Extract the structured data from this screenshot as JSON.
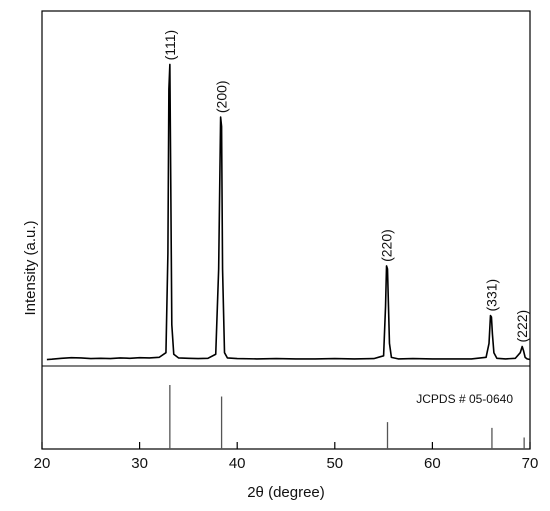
{
  "chart_data": {
    "type": "line",
    "xlabel": "2θ (degree)",
    "ylabel": "Intensity (a.u.)",
    "xlim": [
      20,
      70
    ],
    "x_ticks": [
      20,
      30,
      40,
      50,
      60,
      70
    ],
    "ylim": [
      0,
      100
    ],
    "grid": false,
    "series": [
      {
        "x": [
          20.5,
          21,
          22,
          23,
          24,
          25,
          26,
          27,
          28,
          29,
          30,
          31,
          32,
          32.7,
          32.9,
          33.0,
          33.1,
          33.2,
          33.3,
          33.5,
          34,
          35,
          36,
          37,
          37.8,
          38.1,
          38.3,
          38.4,
          38.5,
          38.7,
          39,
          40,
          42,
          44,
          46,
          48,
          50,
          52,
          54,
          55.0,
          55.2,
          55.3,
          55.4,
          55.5,
          55.6,
          55.8,
          56.5,
          58,
          60,
          62,
          64,
          65.5,
          65.8,
          65.95,
          66.05,
          66.15,
          66.3,
          66.6,
          67.5,
          68.5,
          69.0,
          69.2,
          69.35,
          69.5,
          69.7,
          70
        ],
        "values": [
          0.8,
          0.9,
          1.2,
          1.4,
          1.3,
          1.1,
          1.2,
          1.1,
          1.3,
          1.2,
          1.4,
          1.3,
          1.5,
          3,
          35,
          88,
          96,
          55,
          12,
          2.5,
          1.3,
          1.2,
          1.1,
          1.2,
          2.5,
          30,
          79,
          76,
          30,
          3,
          1.3,
          1.1,
          1.0,
          1.1,
          1.0,
          1.0,
          1.1,
          1.0,
          1.1,
          2,
          18,
          31,
          30,
          18,
          6,
          1.5,
          1.0,
          1.1,
          1.0,
          1.0,
          1.0,
          1.5,
          6,
          15,
          14.5,
          9,
          3,
          1.2,
          1.0,
          1.2,
          3,
          5,
          3.5,
          1.5,
          1.0,
          0.8
        ]
      }
    ],
    "peak_labels": [
      {
        "text": "(111)",
        "x": 33.1,
        "y": 96
      },
      {
        "text": "(200)",
        "x": 38.4,
        "y": 79
      },
      {
        "text": "(220)",
        "x": 55.3,
        "y": 31
      },
      {
        "text": "(331)",
        "x": 66.05,
        "y": 15
      },
      {
        "text": "(222)",
        "x": 69.2,
        "y": 5
      }
    ],
    "reference_pattern": {
      "label": "JCPDS # 05-0640",
      "peaks": [
        {
          "x": 33.1,
          "intensity": 100
        },
        {
          "x": 38.4,
          "intensity": 82
        },
        {
          "x": 55.4,
          "intensity": 42
        },
        {
          "x": 66.1,
          "intensity": 33
        },
        {
          "x": 69.4,
          "intensity": 18
        }
      ]
    }
  }
}
